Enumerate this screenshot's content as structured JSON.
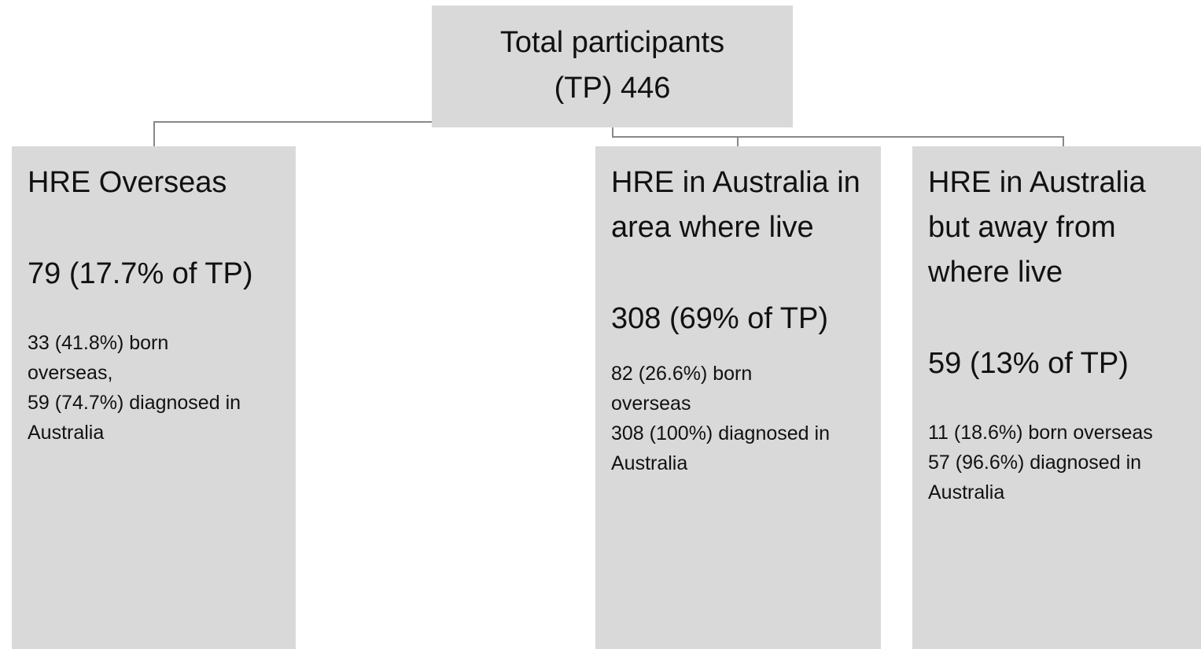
{
  "root": {
    "lines": [
      "Total participants",
      "(TP) 446"
    ]
  },
  "nodes": [
    {
      "title": "HRE Overseas",
      "value": "79 (17.7% of TP)",
      "details": [
        "33 (41.8%) born overseas,",
        "59 (74.7%) diagnosed in Australia"
      ]
    },
    {
      "title": "HRE in Australia in area where live",
      "value": "308 (69% of TP)",
      "details": [
        "82 (26.6%) born overseas",
        "308 (100%) diagnosed in Australia"
      ]
    },
    {
      "title": "HRE in Australia but away from where live",
      "value": "59 (13% of TP)",
      "details": [
        "11 (18.6%) born overseas",
        "57 (96.6%) diagnosed in Australia"
      ]
    }
  ]
}
